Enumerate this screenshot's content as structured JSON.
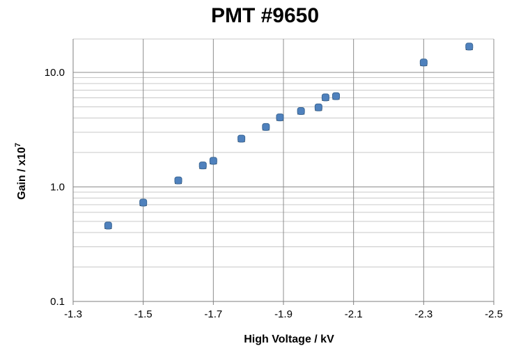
{
  "chart_data": {
    "type": "scatter",
    "title": "PMT #9650",
    "xlabel": "High Voltage  / kV",
    "ylabel_main": "Gain / x10",
    "ylabel_sup": "7",
    "xlim": [
      -1.3,
      -2.5
    ],
    "ylim": [
      0.1,
      20
    ],
    "y_scale": "log",
    "x_ticks": [
      -1.3,
      -1.5,
      -1.7,
      -1.9,
      -2.1,
      -2.3,
      -2.5
    ],
    "x_tick_labels": [
      "-1.3",
      "-1.5",
      "-1.7",
      "-1.9",
      "-2.1",
      "-2.3",
      "-2.5"
    ],
    "y_ticks": [
      0.1,
      1.0,
      10.0
    ],
    "y_tick_labels": [
      "0.1",
      "1.0",
      "10.0"
    ],
    "grid": true,
    "marker_color": "#4f81bd",
    "series": [
      {
        "x": [
          -1.4,
          -1.5,
          -1.6,
          -1.67,
          -1.7,
          -1.78,
          -1.85,
          -1.89,
          -1.95,
          -2.0,
          -2.02,
          -2.05,
          -2.3,
          -2.43
        ],
        "y": [
          0.46,
          0.73,
          1.14,
          1.54,
          1.69,
          2.64,
          3.34,
          4.05,
          4.6,
          4.95,
          6.05,
          6.2,
          12.2,
          16.8
        ]
      }
    ]
  }
}
